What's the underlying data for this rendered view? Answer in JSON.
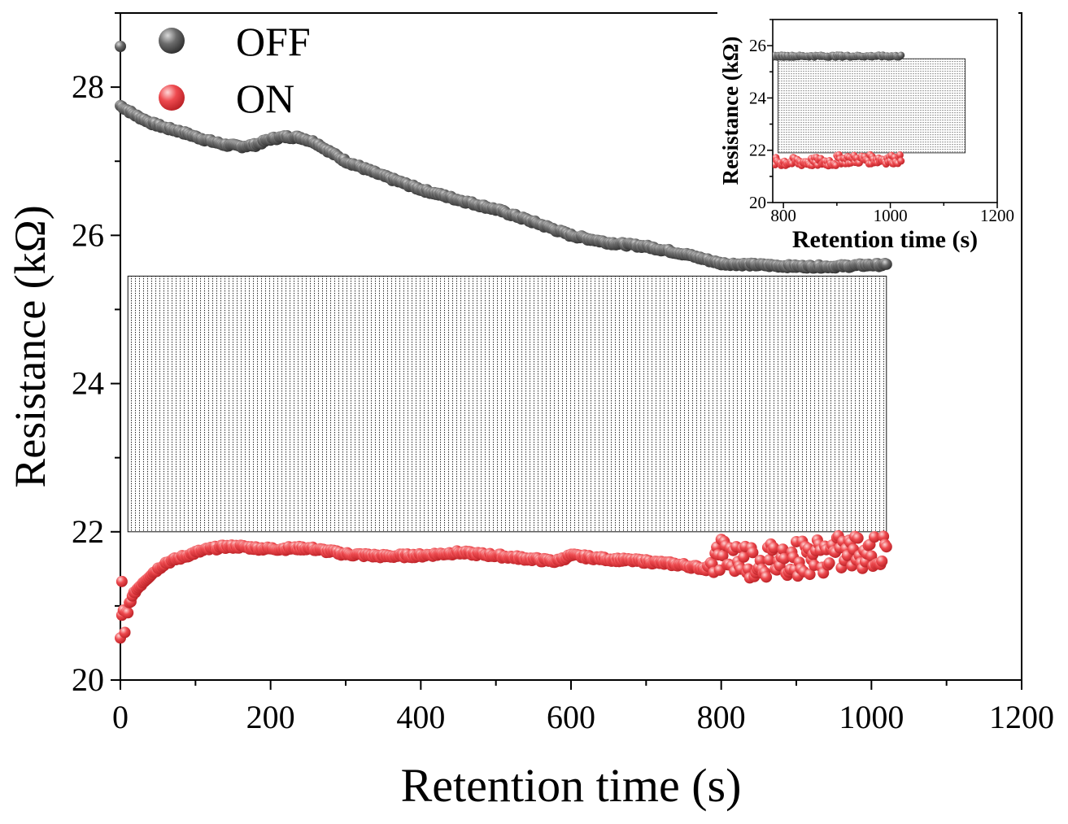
{
  "chart_data": [
    {
      "type": "scatter",
      "xlabel": "Retention time (s)",
      "ylabel": "Resistance (kΩ)",
      "xlim": [
        0,
        1200
      ],
      "ylim": [
        20,
        29
      ],
      "x_ticks": [
        "0",
        "200",
        "400",
        "600",
        "800",
        "1000",
        "1200"
      ],
      "y_ticks": [
        "20",
        "22",
        "24",
        "26",
        "28"
      ],
      "legend": {
        "placement": "top-left",
        "entries": [
          "OFF",
          "ON"
        ]
      },
      "memory_window": {
        "x_range": [
          10,
          1020
        ],
        "y_range": [
          22.0,
          25.45
        ],
        "pattern": "dotted hatch"
      },
      "series": [
        {
          "name": "OFF",
          "color": "#555555",
          "x": [
            0,
            20,
            40,
            60,
            80,
            100,
            120,
            140,
            160,
            180,
            200,
            220,
            240,
            260,
            280,
            300,
            350,
            400,
            450,
            500,
            550,
            600,
            650,
            700,
            750,
            800,
            850,
            900,
            950,
            1000,
            1020
          ],
          "y": [
            27.75,
            27.62,
            27.52,
            27.45,
            27.4,
            27.33,
            27.27,
            27.22,
            27.2,
            27.22,
            27.3,
            27.33,
            27.32,
            27.25,
            27.12,
            27.0,
            26.8,
            26.62,
            26.48,
            26.35,
            26.18,
            26.0,
            25.9,
            25.85,
            25.75,
            25.62,
            25.6,
            25.58,
            25.58,
            25.6,
            25.6
          ]
        },
        {
          "name": "ON",
          "color": "#e8383d",
          "x": [
            0,
            5,
            10,
            20,
            30,
            40,
            50,
            60,
            80,
            100,
            120,
            140,
            160,
            180,
            200,
            250,
            300,
            350,
            400,
            450,
            500,
            550,
            580,
            600,
            650,
            700,
            750,
            780,
            800,
            850,
            900,
            950,
            1000,
            1020
          ],
          "y": [
            20.5,
            20.8,
            21.0,
            21.2,
            21.32,
            21.42,
            21.5,
            21.58,
            21.65,
            21.72,
            21.77,
            21.8,
            21.8,
            21.78,
            21.77,
            21.78,
            21.7,
            21.67,
            21.68,
            21.72,
            21.68,
            21.63,
            21.6,
            21.68,
            21.63,
            21.6,
            21.55,
            21.5,
            21.7,
            21.6,
            21.65,
            21.7,
            21.75,
            21.7
          ]
        }
      ]
    },
    {
      "type": "scatter",
      "inset": true,
      "xlabel": "Retention time (s)",
      "ylabel": "Resistance (kΩ)",
      "xlim": [
        780,
        1200
      ],
      "ylim": [
        20,
        27
      ],
      "x_ticks": [
        "800",
        "1000",
        "1200"
      ],
      "y_ticks": [
        "20",
        "22",
        "24",
        "26"
      ],
      "memory_window": {
        "x_range": [
          790,
          1140
        ],
        "y_range": [
          21.9,
          25.5
        ],
        "pattern": "dotted hatch"
      },
      "series": [
        {
          "name": "OFF",
          "color": "#555555",
          "x_range": [
            780,
            1020
          ],
          "y_level": 25.6
        },
        {
          "name": "ON",
          "color": "#e8383d",
          "x_range": [
            780,
            1020
          ],
          "y_level": 21.65
        }
      ]
    }
  ]
}
